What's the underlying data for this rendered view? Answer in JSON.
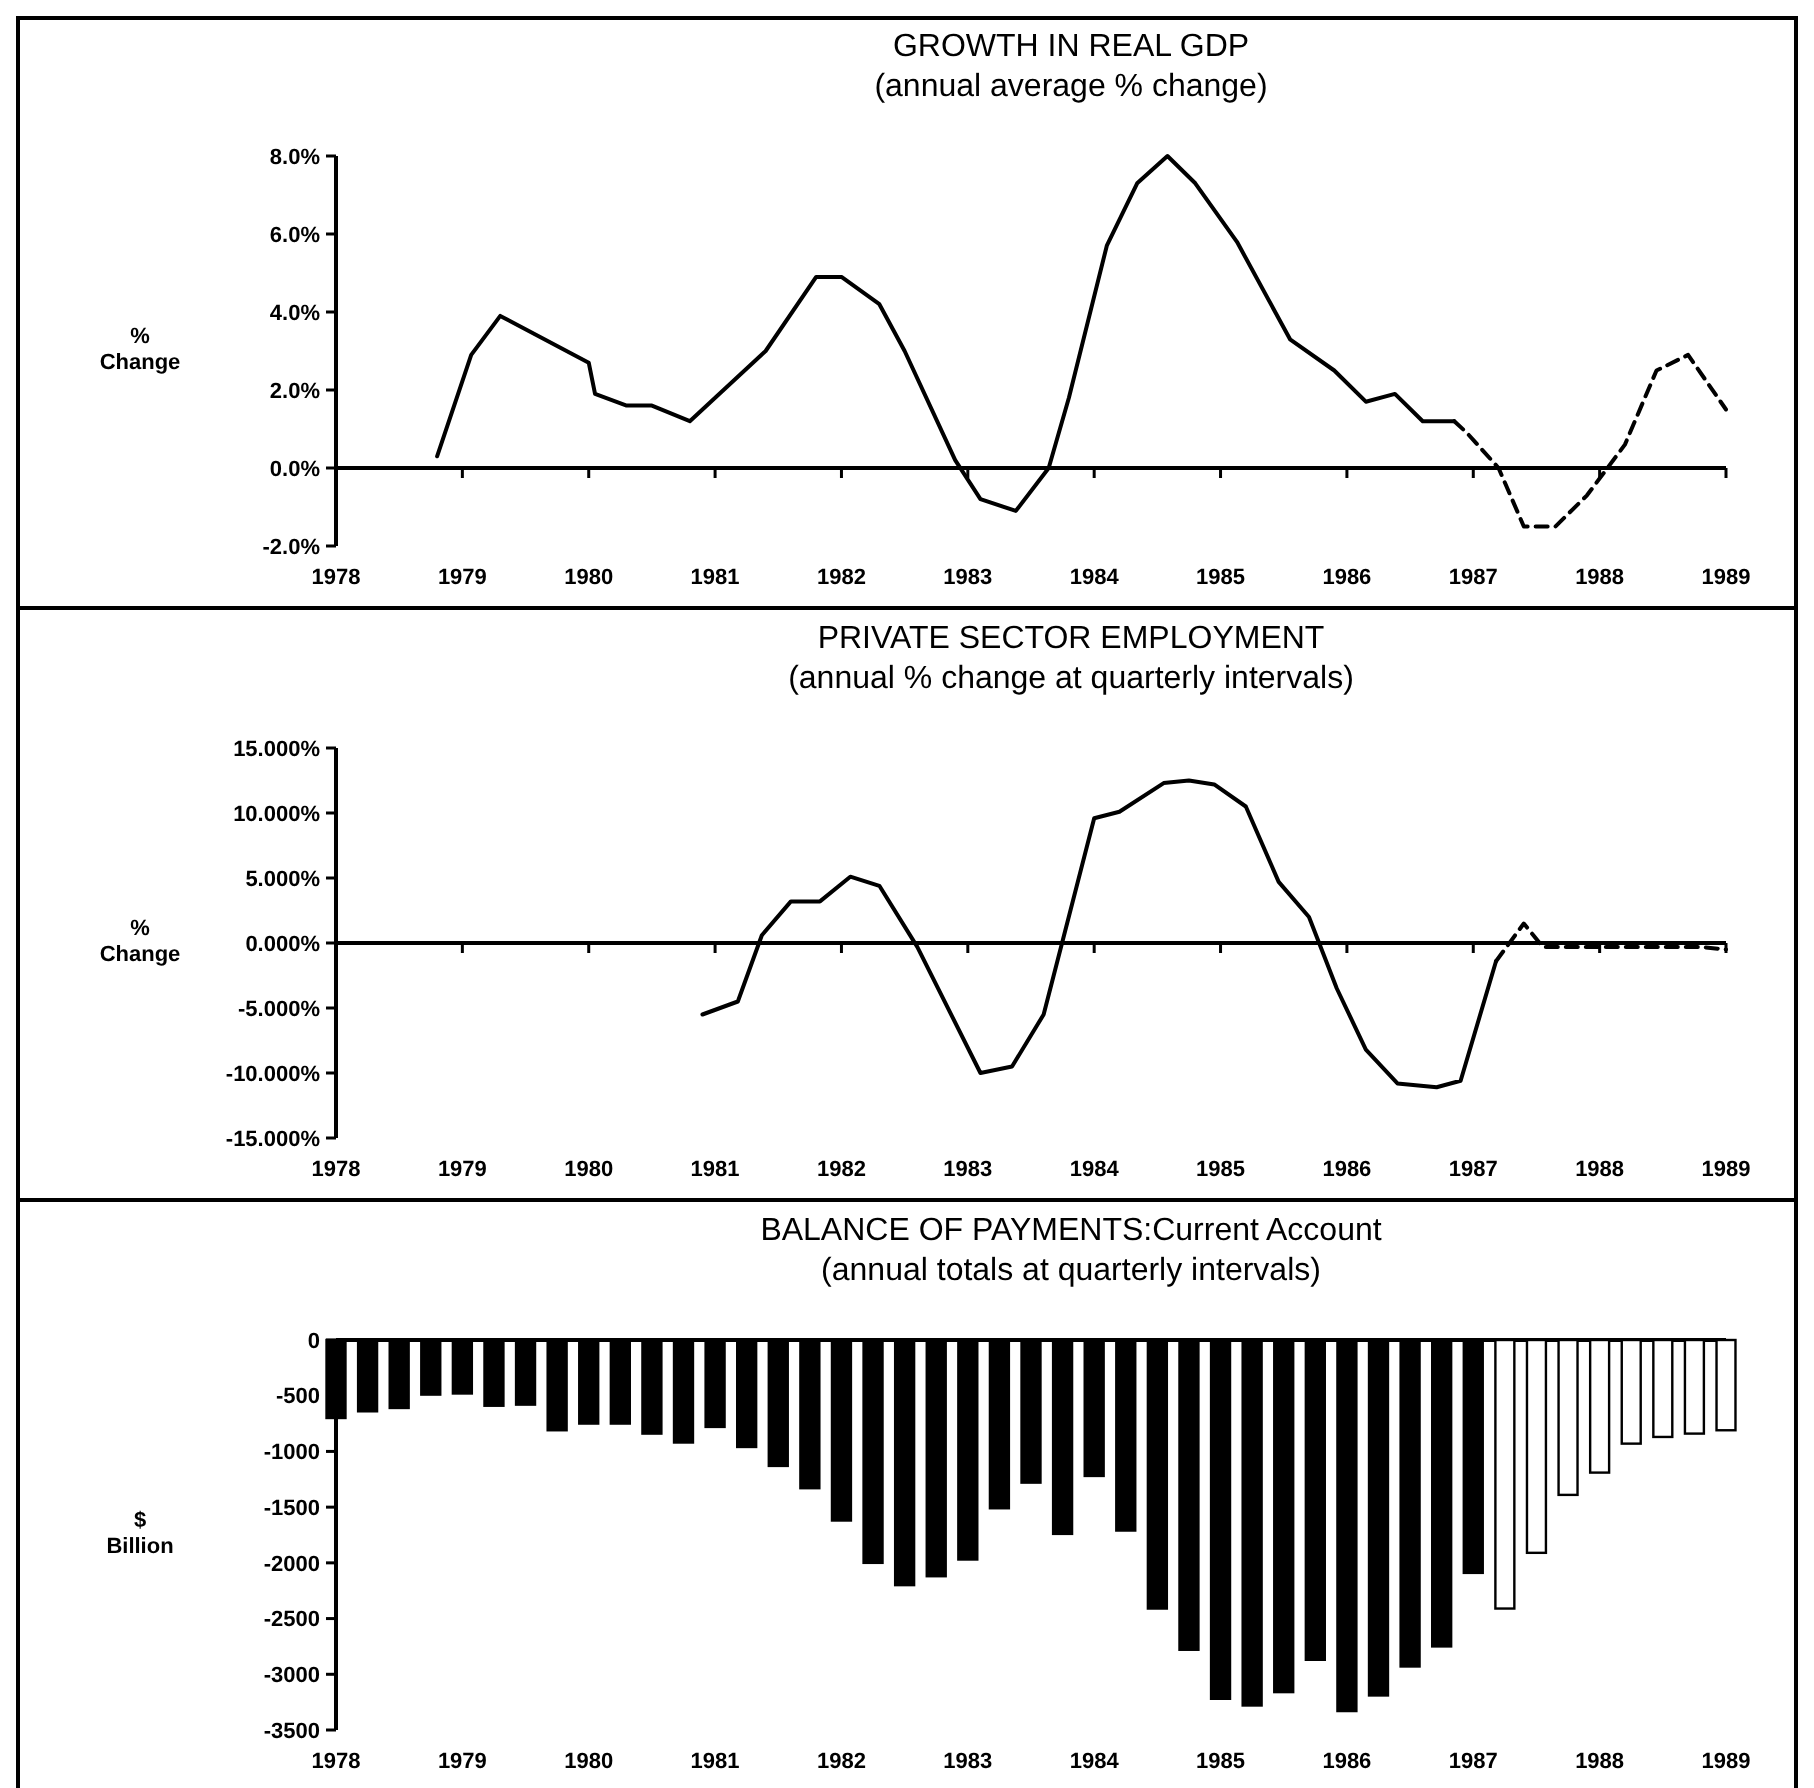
{
  "chart_data": [
    {
      "type": "line",
      "title": "GROWTH IN REAL GDP",
      "subtitle": "(annual average % change)",
      "ylabel": "% Change",
      "xlim": [
        1978,
        1989
      ],
      "xticks": [
        1978,
        1979,
        1980,
        1981,
        1982,
        1983,
        1984,
        1985,
        1986,
        1987,
        1988,
        1989
      ],
      "ylim": [
        -2,
        8
      ],
      "yticks": [
        {
          "value": -2,
          "label": "-2.0%"
        },
        {
          "value": 0,
          "label": "0.0%"
        },
        {
          "value": 2,
          "label": "2.0%"
        },
        {
          "value": 4,
          "label": "4.0%"
        },
        {
          "value": 6,
          "label": "6.0%"
        },
        {
          "value": 8,
          "label": "8.0%"
        }
      ],
      "marker": "none",
      "series": [
        {
          "color": "#000000",
          "line_style": "solid",
          "x": [
            1978.8,
            1979.07,
            1979.3,
            1980.0,
            1980.05,
            1980.3,
            1980.5,
            1980.8,
            1981.4,
            1981.8,
            1982.0,
            1982.3,
            1982.5,
            1982.9,
            1983.1,
            1983.38,
            1983.64,
            1983.8,
            1984.1,
            1984.34,
            1984.58,
            1984.8,
            1985.13,
            1985.55,
            1985.9,
            1986.15,
            1986.38,
            1986.6,
            1986.85
          ],
          "values": [
            0.3,
            2.9,
            3.9,
            2.7,
            1.9,
            1.6,
            1.6,
            1.2,
            3.0,
            4.9,
            4.9,
            4.2,
            3.0,
            0.2,
            -0.8,
            -1.1,
            0,
            1.8,
            5.7,
            7.3,
            8.0,
            7.3,
            5.8,
            3.3,
            2.5,
            1.7,
            1.9,
            1.2,
            1.2
          ]
        },
        {
          "color": "#000000",
          "line_style": "dashed",
          "x": [
            1986.85,
            1986.95,
            1987.2,
            1987.4,
            1987.65,
            1987.9,
            1988.2,
            1988.45,
            1988.7,
            1989.0
          ],
          "values": [
            1.2,
            0.9,
            0,
            -1.5,
            -1.5,
            -0.7,
            0.6,
            2.5,
            2.9,
            1.5
          ]
        }
      ]
    },
    {
      "type": "line",
      "title": "PRIVATE SECTOR EMPLOYMENT",
      "subtitle": "(annual % change at quarterly intervals)",
      "ylabel": "% Change",
      "xlim": [
        1978,
        1989
      ],
      "xticks": [
        1978,
        1979,
        1980,
        1981,
        1982,
        1983,
        1984,
        1985,
        1986,
        1987,
        1988,
        1989
      ],
      "ylim": [
        -15,
        15
      ],
      "yticks": [
        {
          "value": -15,
          "label": "-15.000%"
        },
        {
          "value": -10,
          "label": "-10.000%"
        },
        {
          "value": -5,
          "label": "-5.000%"
        },
        {
          "value": 0,
          "label": "0.000%"
        },
        {
          "value": 5,
          "label": "5.000%"
        },
        {
          "value": 10,
          "label": "10.000%"
        },
        {
          "value": 15,
          "label": "15.000%"
        }
      ],
      "marker": "none",
      "series": [
        {
          "color": "#000000",
          "line_style": "solid",
          "x": [
            1980.9,
            1981.18,
            1981.37,
            1981.6,
            1981.83,
            1982.07,
            1982.3,
            1982.6,
            1983.1,
            1983.35,
            1983.6,
            1984.0,
            1984.2,
            1984.55,
            1984.75,
            1984.95,
            1985.2,
            1985.46,
            1985.7,
            1985.92,
            1986.15,
            1986.4,
            1986.71,
            1986.9,
            1987.18
          ],
          "values": [
            -5.5,
            -4.5,
            0.6,
            3.2,
            3.2,
            5.1,
            4.4,
            -0.3,
            -10,
            -9.5,
            -5.5,
            9.6,
            10.1,
            12.3,
            12.5,
            12.2,
            10.5,
            4.7,
            2.0,
            -3.5,
            -8.2,
            -10.8,
            -11.1,
            -10.6,
            -1.4
          ]
        },
        {
          "color": "#000000",
          "line_style": "dashed",
          "x": [
            1987.18,
            1987.4,
            1987.55,
            1987.8,
            1988.3,
            1988.8,
            1989.0
          ],
          "values": [
            -1.4,
            1.5,
            -0.3,
            -0.3,
            -0.3,
            -0.3,
            -0.5
          ]
        }
      ]
    },
    {
      "type": "bar",
      "title": "BALANCE OF PAYMENTS:Current Account",
      "subtitle": "(annual totals at quarterly intervals)",
      "ylabel": "$ Billion",
      "xlim": [
        1978,
        1989
      ],
      "xticks": [
        1978,
        1979,
        1980,
        1981,
        1982,
        1983,
        1984,
        1985,
        1986,
        1987,
        1988,
        1989
      ],
      "ylim": [
        -3500,
        0
      ],
      "yticks": [
        -3500,
        -3000,
        -2500,
        -2000,
        -1500,
        -1000,
        -500,
        0
      ],
      "series": [
        {
          "color": "#000000",
          "x": [
            1978,
            1978.25,
            1978.5,
            1978.75,
            1979,
            1979.25,
            1979.5,
            1979.75,
            1980,
            1980.25,
            1980.5,
            1980.75,
            1981,
            1981.25,
            1981.5,
            1981.75,
            1982,
            1982.25,
            1982.5,
            1982.75,
            1983,
            1983.25,
            1983.5,
            1983.75,
            1984,
            1984.25,
            1984.5,
            1984.75,
            1985,
            1985.25,
            1985.5,
            1985.75,
            1986,
            1986.25,
            1986.5,
            1986.75,
            1987
          ],
          "values": [
            -700,
            -640,
            -610,
            -490,
            -480,
            -590,
            -580,
            -810,
            -750,
            -750,
            -840,
            -920,
            -780,
            -960,
            -1130,
            -1330,
            -1620,
            -2000,
            -2200,
            -2120,
            -1970,
            -1510,
            -1280,
            -1740,
            -1220,
            -1710,
            -2410,
            -2780,
            -3220,
            -3280,
            -3160,
            -2870,
            -3330,
            -3190,
            -2930,
            -2750,
            -2090
          ]
        },
        {
          "color": "#ffffff",
          "x": [
            1987.25,
            1987.5,
            1987.75,
            1988,
            1988.25,
            1988.5,
            1988.75,
            1989
          ],
          "values": [
            -2410,
            -1910,
            -1390,
            -1190,
            -930,
            -870,
            -840,
            -810
          ]
        }
      ]
    }
  ]
}
